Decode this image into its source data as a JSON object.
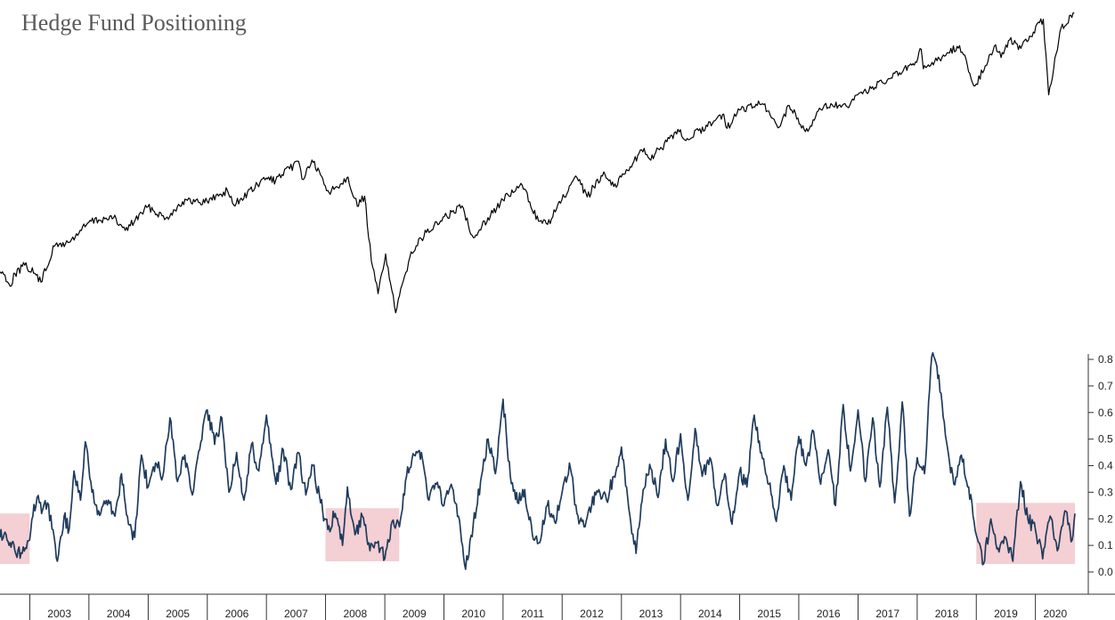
{
  "chart_data": {
    "title": "Hedge Fund Positioning",
    "x_axis": {
      "type": "date",
      "year_labels": [
        "2003",
        "2004",
        "2005",
        "2006",
        "2007",
        "2008",
        "2009",
        "2010",
        "2011",
        "2012",
        "2013",
        "2014",
        "2015",
        "2016",
        "2017",
        "2018",
        "2019",
        "2020"
      ]
    },
    "panels": [
      {
        "type": "line",
        "color": "#000000",
        "y_axis": "hidden",
        "points": [
          [
            "2002-07-01",
            848
          ],
          [
            "2002-08-01",
            833
          ],
          [
            "2002-09-01",
            783
          ],
          [
            "2002-10-01",
            840
          ],
          [
            "2002-12-01",
            879
          ],
          [
            "2003-02-01",
            841
          ],
          [
            "2003-03-11",
            801
          ],
          [
            "2003-06-01",
            975
          ],
          [
            "2003-09-01",
            996
          ],
          [
            "2003-12-31",
            1112
          ],
          [
            "2004-03-01",
            1127
          ],
          [
            "2004-06-01",
            1140
          ],
          [
            "2004-08-12",
            1064
          ],
          [
            "2004-12-31",
            1212
          ],
          [
            "2005-04-20",
            1137
          ],
          [
            "2005-08-01",
            1245
          ],
          [
            "2005-12-31",
            1248
          ],
          [
            "2006-05-05",
            1325
          ],
          [
            "2006-06-13",
            1223
          ],
          [
            "2006-12-31",
            1418
          ],
          [
            "2007-02-27",
            1399
          ],
          [
            "2007-07-19",
            1553
          ],
          [
            "2007-08-15",
            1406
          ],
          [
            "2007-10-09",
            1565
          ],
          [
            "2008-01-22",
            1310
          ],
          [
            "2008-05-19",
            1426
          ],
          [
            "2008-07-15",
            1214
          ],
          [
            "2008-08-29",
            1283
          ],
          [
            "2008-10-10",
            899
          ],
          [
            "2008-11-20",
            752
          ],
          [
            "2009-01-06",
            935
          ],
          [
            "2009-03-09",
            677
          ],
          [
            "2009-06-12",
            946
          ],
          [
            "2009-09-15",
            1052
          ],
          [
            "2010-01-19",
            1150
          ],
          [
            "2010-04-23",
            1217
          ],
          [
            "2010-07-02",
            1022
          ],
          [
            "2010-09-30",
            1141
          ],
          [
            "2010-12-31",
            1258
          ],
          [
            "2011-04-29",
            1364
          ],
          [
            "2011-08-08",
            1119
          ],
          [
            "2011-10-03",
            1099
          ],
          [
            "2011-12-30",
            1258
          ],
          [
            "2012-04-02",
            1419
          ],
          [
            "2012-06-04",
            1278
          ],
          [
            "2012-09-14",
            1466
          ],
          [
            "2012-11-15",
            1353
          ],
          [
            "2012-12-31",
            1426
          ],
          [
            "2013-05-21",
            1669
          ],
          [
            "2013-06-24",
            1573
          ],
          [
            "2013-12-31",
            1848
          ],
          [
            "2014-02-03",
            1741
          ],
          [
            "2014-09-18",
            2011
          ],
          [
            "2014-10-15",
            1862
          ],
          [
            "2014-12-31",
            2059
          ],
          [
            "2015-05-21",
            2131
          ],
          [
            "2015-08-25",
            1867
          ],
          [
            "2015-11-03",
            2109
          ],
          [
            "2016-02-11",
            1829
          ],
          [
            "2016-06-08",
            2119
          ],
          [
            "2016-11-04",
            2085
          ],
          [
            "2016-12-30",
            2239
          ],
          [
            "2017-06-30",
            2423
          ],
          [
            "2017-12-29",
            2674
          ],
          [
            "2018-01-26",
            2873
          ],
          [
            "2018-02-08",
            2581
          ],
          [
            "2018-09-20",
            2931
          ],
          [
            "2018-12-24",
            2351
          ],
          [
            "2019-04-30",
            2946
          ],
          [
            "2019-06-03",
            2744
          ],
          [
            "2019-07-26",
            3025
          ],
          [
            "2019-10-03",
            2887
          ],
          [
            "2020-02-19",
            3386
          ],
          [
            "2020-03-23",
            2237
          ],
          [
            "2020-06-08",
            3232
          ],
          [
            "2020-08-28",
            3508
          ]
        ]
      },
      {
        "type": "line",
        "color": "#1f3b5c",
        "y_axis": {
          "position": "right",
          "min": 0.0,
          "max": 0.8,
          "ticks": [
            "0.0",
            "0.1",
            "0.2",
            "0.3",
            "0.4",
            "0.5",
            "0.6",
            "0.7",
            "0.8"
          ]
        },
        "highlight_color": "#f4cfd3",
        "highlight_ranges": [
          {
            "from": "2002-07-01",
            "to": "2002-12-31",
            "low": 0.03,
            "high": 0.22
          },
          {
            "from": "2008-01-01",
            "to": "2009-03-31",
            "low": 0.04,
            "high": 0.24
          },
          {
            "from": "2019-01-01",
            "to": "2020-09-01",
            "low": 0.03,
            "high": 0.26
          }
        ],
        "points": [
          [
            "2002-07-01",
            0.13
          ],
          [
            "2002-08-01",
            0.15
          ],
          [
            "2002-09-01",
            0.11
          ],
          [
            "2002-10-01",
            0.08
          ],
          [
            "2002-11-15",
            0.07
          ],
          [
            "2002-12-31",
            0.12
          ],
          [
            "2003-01-20",
            0.21
          ],
          [
            "2003-02-15",
            0.28
          ],
          [
            "2003-03-15",
            0.22
          ],
          [
            "2003-04-20",
            0.26
          ],
          [
            "2003-06-01",
            0.13
          ],
          [
            "2003-06-20",
            0.04
          ],
          [
            "2003-08-01",
            0.21
          ],
          [
            "2003-09-01",
            0.16
          ],
          [
            "2003-10-01",
            0.38
          ],
          [
            "2003-11-10",
            0.27
          ],
          [
            "2003-12-10",
            0.49
          ],
          [
            "2004-01-20",
            0.3
          ],
          [
            "2004-03-01",
            0.23
          ],
          [
            "2004-05-01",
            0.27
          ],
          [
            "2004-06-10",
            0.21
          ],
          [
            "2004-07-20",
            0.37
          ],
          [
            "2004-09-01",
            0.18
          ],
          [
            "2004-10-10",
            0.13
          ],
          [
            "2004-11-20",
            0.44
          ],
          [
            "2005-01-01",
            0.32
          ],
          [
            "2005-02-15",
            0.41
          ],
          [
            "2005-04-01",
            0.36
          ],
          [
            "2005-05-15",
            0.58
          ],
          [
            "2005-07-01",
            0.34
          ],
          [
            "2005-08-15",
            0.44
          ],
          [
            "2005-10-01",
            0.29
          ],
          [
            "2005-11-15",
            0.46
          ],
          [
            "2006-01-01",
            0.61
          ],
          [
            "2006-02-15",
            0.48
          ],
          [
            "2006-04-01",
            0.58
          ],
          [
            "2006-05-15",
            0.3
          ],
          [
            "2006-07-01",
            0.45
          ],
          [
            "2006-08-15",
            0.27
          ],
          [
            "2006-10-01",
            0.48
          ],
          [
            "2006-11-15",
            0.38
          ],
          [
            "2007-01-01",
            0.59
          ],
          [
            "2007-03-01",
            0.33
          ],
          [
            "2007-04-15",
            0.46
          ],
          [
            "2007-06-01",
            0.31
          ],
          [
            "2007-07-15",
            0.45
          ],
          [
            "2007-09-01",
            0.29
          ],
          [
            "2007-10-15",
            0.4
          ],
          [
            "2007-12-01",
            0.26
          ],
          [
            "2008-01-15",
            0.16
          ],
          [
            "2008-03-01",
            0.22
          ],
          [
            "2008-04-15",
            0.1
          ],
          [
            "2008-05-15",
            0.32
          ],
          [
            "2008-07-01",
            0.14
          ],
          [
            "2008-08-15",
            0.21
          ],
          [
            "2008-10-01",
            0.08
          ],
          [
            "2008-11-15",
            0.11
          ],
          [
            "2009-01-01",
            0.05
          ],
          [
            "2009-02-15",
            0.19
          ],
          [
            "2009-04-01",
            0.17
          ],
          [
            "2009-05-15",
            0.36
          ],
          [
            "2009-07-01",
            0.44
          ],
          [
            "2009-08-15",
            0.45
          ],
          [
            "2009-10-01",
            0.27
          ],
          [
            "2009-11-15",
            0.33
          ],
          [
            "2010-01-01",
            0.25
          ],
          [
            "2010-02-15",
            0.33
          ],
          [
            "2010-04-01",
            0.21
          ],
          [
            "2010-05-15",
            0.01
          ],
          [
            "2010-07-01",
            0.18
          ],
          [
            "2010-08-15",
            0.34
          ],
          [
            "2010-10-01",
            0.5
          ],
          [
            "2010-11-15",
            0.37
          ],
          [
            "2011-01-01",
            0.65
          ],
          [
            "2011-02-15",
            0.36
          ],
          [
            "2011-04-01",
            0.26
          ],
          [
            "2011-05-15",
            0.31
          ],
          [
            "2011-07-01",
            0.14
          ],
          [
            "2011-08-15",
            0.11
          ],
          [
            "2011-10-01",
            0.25
          ],
          [
            "2011-11-15",
            0.19
          ],
          [
            "2012-01-01",
            0.3
          ],
          [
            "2012-02-15",
            0.41
          ],
          [
            "2012-04-01",
            0.22
          ],
          [
            "2012-05-15",
            0.17
          ],
          [
            "2012-07-01",
            0.25
          ],
          [
            "2012-08-15",
            0.31
          ],
          [
            "2012-10-01",
            0.27
          ],
          [
            "2012-11-15",
            0.36
          ],
          [
            "2013-01-01",
            0.47
          ],
          [
            "2013-02-15",
            0.24
          ],
          [
            "2013-04-01",
            0.07
          ],
          [
            "2013-05-15",
            0.31
          ],
          [
            "2013-07-01",
            0.39
          ],
          [
            "2013-08-15",
            0.28
          ],
          [
            "2013-10-01",
            0.5
          ],
          [
            "2013-11-15",
            0.34
          ],
          [
            "2014-01-01",
            0.52
          ],
          [
            "2014-02-15",
            0.27
          ],
          [
            "2014-04-01",
            0.54
          ],
          [
            "2014-05-15",
            0.36
          ],
          [
            "2014-07-01",
            0.43
          ],
          [
            "2014-08-15",
            0.25
          ],
          [
            "2014-10-01",
            0.37
          ],
          [
            "2014-11-15",
            0.18
          ],
          [
            "2015-01-01",
            0.38
          ],
          [
            "2015-02-15",
            0.32
          ],
          [
            "2015-04-01",
            0.59
          ],
          [
            "2015-05-15",
            0.45
          ],
          [
            "2015-07-01",
            0.33
          ],
          [
            "2015-08-15",
            0.19
          ],
          [
            "2015-10-01",
            0.4
          ],
          [
            "2015-11-15",
            0.27
          ],
          [
            "2016-01-01",
            0.51
          ],
          [
            "2016-02-15",
            0.4
          ],
          [
            "2016-04-01",
            0.53
          ],
          [
            "2016-05-15",
            0.33
          ],
          [
            "2016-07-01",
            0.46
          ],
          [
            "2016-08-15",
            0.25
          ],
          [
            "2016-10-01",
            0.63
          ],
          [
            "2016-11-15",
            0.38
          ],
          [
            "2017-01-01",
            0.61
          ],
          [
            "2017-02-15",
            0.34
          ],
          [
            "2017-04-01",
            0.58
          ],
          [
            "2017-05-15",
            0.32
          ],
          [
            "2017-07-01",
            0.62
          ],
          [
            "2017-08-15",
            0.26
          ],
          [
            "2017-10-01",
            0.64
          ],
          [
            "2017-11-15",
            0.21
          ],
          [
            "2018-01-01",
            0.43
          ],
          [
            "2018-02-15",
            0.37
          ],
          [
            "2018-04-01",
            0.81
          ],
          [
            "2018-05-15",
            0.74
          ],
          [
            "2018-07-01",
            0.49
          ],
          [
            "2018-08-15",
            0.33
          ],
          [
            "2018-10-01",
            0.44
          ],
          [
            "2018-11-15",
            0.32
          ],
          [
            "2019-01-01",
            0.14
          ],
          [
            "2019-02-15",
            0.03
          ],
          [
            "2019-04-01",
            0.2
          ],
          [
            "2019-05-15",
            0.09
          ],
          [
            "2019-07-01",
            0.13
          ],
          [
            "2019-08-15",
            0.04
          ],
          [
            "2019-10-01",
            0.34
          ],
          [
            "2019-11-15",
            0.2
          ],
          [
            "2020-01-01",
            0.16
          ],
          [
            "2020-02-15",
            0.05
          ],
          [
            "2020-04-01",
            0.21
          ],
          [
            "2020-05-15",
            0.08
          ],
          [
            "2020-07-01",
            0.23
          ],
          [
            "2020-08-15",
            0.12
          ],
          [
            "2020-09-01",
            0.22
          ]
        ]
      }
    ]
  }
}
